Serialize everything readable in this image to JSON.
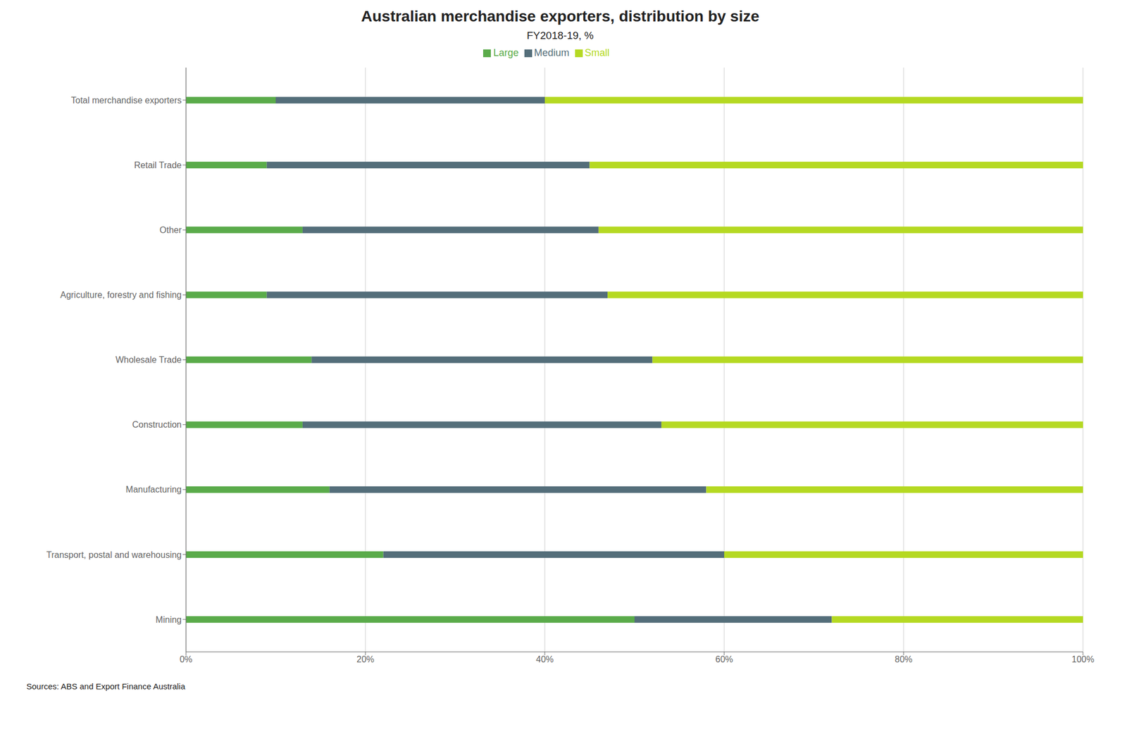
{
  "chart_data": {
    "type": "bar",
    "title": "Australian merchandise exporters, distribution by size",
    "subtitle": "FY2018-19, %",
    "annotations": [
      "Sources: ABS and Export Finance Australia"
    ],
    "orientation": "horizontal",
    "stacked": true,
    "categories": [
      "Total merchandise exporters",
      "Retail Trade",
      "Other",
      "Agriculture, forestry and fishing",
      "Wholesale Trade",
      "Construction",
      "Manufacturing",
      "Transport, postal and warehousing",
      "Mining"
    ],
    "series": [
      {
        "name": "Large",
        "color": "#5aab4a",
        "values": [
          10,
          9,
          13,
          9,
          14,
          13,
          16,
          22,
          50
        ]
      },
      {
        "name": "Medium",
        "color": "#546e7a",
        "values": [
          30,
          36,
          33,
          38,
          38,
          40,
          42,
          38,
          22
        ]
      },
      {
        "name": "Small",
        "color": "#b5d922",
        "values": [
          60,
          55,
          54,
          53,
          48,
          47,
          42,
          40,
          28
        ]
      }
    ],
    "xlim": [
      0,
      100
    ],
    "xticks": [
      {
        "value": 0,
        "label": "0%"
      },
      {
        "value": 20,
        "label": "20%"
      },
      {
        "value": 40,
        "label": "40%"
      },
      {
        "value": 60,
        "label": "60%"
      },
      {
        "value": 80,
        "label": "80%"
      },
      {
        "value": 100,
        "label": "100%"
      }
    ],
    "grid": true,
    "legend": "top"
  }
}
